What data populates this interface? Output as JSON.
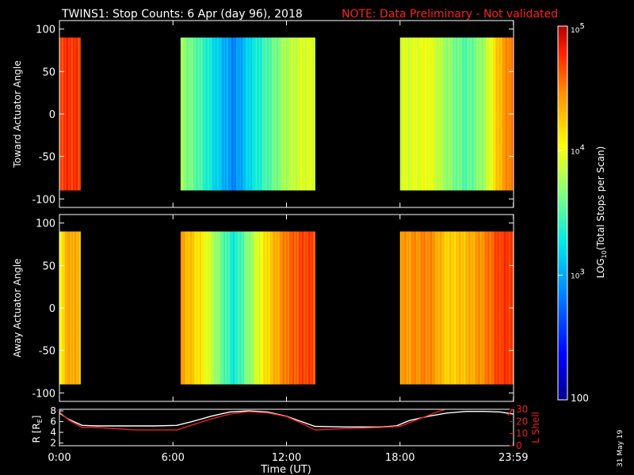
{
  "title": "TWINS1: Stop Counts:  6 Apr (day  96), 2018",
  "note": "NOTE: Data Preliminary - Not validated",
  "stamp": "31 May 19",
  "colors": {
    "note": "#ff2020",
    "frame": "#ffffff",
    "lshell": "#e8201c",
    "rline": "#ffffff"
  },
  "chart_data": [
    {
      "type": "heatmap",
      "ylabel": "Toward Actuator Angle",
      "ylim": [
        -110,
        110
      ],
      "yticks": [
        "100",
        "50",
        "0",
        "-50",
        "-100"
      ],
      "ytick_values": [
        100,
        50,
        0,
        -50,
        -100
      ],
      "angle_range": [
        -90,
        90
      ],
      "xlim_hours": [
        0,
        24
      ],
      "data_intervals_hours": [
        [
          0.0,
          1.1
        ],
        [
          6.4,
          13.5
        ],
        [
          18.0,
          23.99
        ]
      ],
      "log10_counts_profile": [
        {
          "t": 0.0,
          "v": 4.7
        },
        {
          "t": 0.5,
          "v": 4.75
        },
        {
          "t": 1.0,
          "v": 4.7
        },
        {
          "t": 6.4,
          "v": 3.75
        },
        {
          "t": 7.5,
          "v": 3.45
        },
        {
          "t": 8.5,
          "v": 3.1
        },
        {
          "t": 9.2,
          "v": 2.85
        },
        {
          "t": 10.0,
          "v": 3.2
        },
        {
          "t": 11.0,
          "v": 3.5
        },
        {
          "t": 12.0,
          "v": 3.8
        },
        {
          "t": 13.0,
          "v": 3.95
        },
        {
          "t": 13.5,
          "v": 3.9
        },
        {
          "t": 18.0,
          "v": 3.9
        },
        {
          "t": 19.5,
          "v": 4.0
        },
        {
          "t": 20.5,
          "v": 3.7
        },
        {
          "t": 21.5,
          "v": 3.5
        },
        {
          "t": 22.5,
          "v": 3.8
        },
        {
          "t": 23.2,
          "v": 4.3
        },
        {
          "t": 23.99,
          "v": 4.6
        }
      ]
    },
    {
      "type": "heatmap",
      "ylabel": "Away Actuator Angle",
      "ylim": [
        -110,
        110
      ],
      "yticks": [
        "100",
        "50",
        "0",
        "-50",
        "-100"
      ],
      "ytick_values": [
        100,
        50,
        0,
        -50,
        -100
      ],
      "angle_range": [
        -90,
        90
      ],
      "xlim_hours": [
        0,
        24
      ],
      "data_intervals_hours": [
        [
          0.0,
          1.1
        ],
        [
          6.4,
          13.5
        ],
        [
          18.0,
          23.99
        ]
      ],
      "log10_counts_profile": [
        {
          "t": 0.0,
          "v": 4.1
        },
        {
          "t": 0.5,
          "v": 4.4
        },
        {
          "t": 1.0,
          "v": 4.3
        },
        {
          "t": 6.4,
          "v": 4.4
        },
        {
          "t": 7.5,
          "v": 4.1
        },
        {
          "t": 8.5,
          "v": 3.6
        },
        {
          "t": 9.2,
          "v": 3.3
        },
        {
          "t": 10.0,
          "v": 3.7
        },
        {
          "t": 11.0,
          "v": 4.2
        },
        {
          "t": 12.0,
          "v": 4.55
        },
        {
          "t": 13.0,
          "v": 4.7
        },
        {
          "t": 13.5,
          "v": 4.65
        },
        {
          "t": 18.0,
          "v": 4.4
        },
        {
          "t": 19.5,
          "v": 4.5
        },
        {
          "t": 20.5,
          "v": 4.2
        },
        {
          "t": 21.5,
          "v": 4.3
        },
        {
          "t": 22.5,
          "v": 4.5
        },
        {
          "t": 23.2,
          "v": 4.7
        },
        {
          "t": 23.99,
          "v": 4.75
        }
      ]
    },
    {
      "type": "line",
      "ylabel_left": "R [R",
      "ylabel_left_sub": "E",
      "ylabel_left_tail": "]",
      "ylabel_right": "L Shell",
      "xlabel": "Time (UT)",
      "xticks": [
        "0:00",
        "6:00",
        "12:00",
        "18:00",
        "23:59"
      ],
      "xtick_hours": [
        0,
        6,
        12,
        18,
        23.99
      ],
      "ylim_left": [
        1.5,
        8.3
      ],
      "yticks_left": [
        "8",
        "6",
        "4",
        "2"
      ],
      "ytick_left_values": [
        8,
        6,
        4,
        2
      ],
      "ylim_right": [
        0,
        30
      ],
      "yticks_right": [
        "30",
        "20",
        "10",
        "0"
      ],
      "ytick_right_values": [
        30,
        20,
        10,
        0
      ],
      "series": [
        {
          "axis": "left",
          "x": [
            0,
            0.5,
            1.2,
            2,
            4,
            5,
            6.2,
            7,
            8,
            9,
            10,
            11,
            12,
            12.8,
            13.5,
            15,
            17,
            17.8,
            18.5,
            19.5,
            20.5,
            21.5,
            22.5,
            23.3,
            23.99
          ],
          "values": [
            7.6,
            6.4,
            5.3,
            5.2,
            5.2,
            5.2,
            5.3,
            6.0,
            7.0,
            7.8,
            8.0,
            7.8,
            7.0,
            6.0,
            5.1,
            5.0,
            5.0,
            5.2,
            6.2,
            7.0,
            7.6,
            7.9,
            7.9,
            7.8,
            7.4
          ]
        },
        {
          "axis": "right",
          "x": [
            0,
            0.5,
            1.2,
            2,
            3,
            4,
            5,
            6.2,
            7,
            8,
            9,
            10,
            11,
            12,
            13,
            13.5,
            15,
            17,
            18,
            19,
            20,
            20.6
          ],
          "values": [
            28,
            21,
            15,
            15,
            14,
            13,
            13,
            13,
            17,
            22,
            26,
            28,
            27,
            24,
            17,
            13,
            14,
            15,
            16,
            22,
            28,
            31
          ]
        },
        {
          "axis": "right",
          "x": [
            23.7,
            23.99
          ],
          "values": [
            25,
            31
          ]
        }
      ]
    }
  ],
  "colorbar": {
    "label_prefix": "LOG",
    "label_sub": "10",
    "label_suffix": "(Total Stops per Scan)",
    "range_log10": [
      2,
      5
    ],
    "ticks": [
      {
        "base": "10",
        "exp": "5",
        "value": 5
      },
      {
        "base": "10",
        "exp": "4",
        "value": 4
      },
      {
        "base": "10",
        "exp": "3",
        "value": 3
      },
      {
        "base": "100",
        "exp": "",
        "value": 2
      }
    ]
  }
}
